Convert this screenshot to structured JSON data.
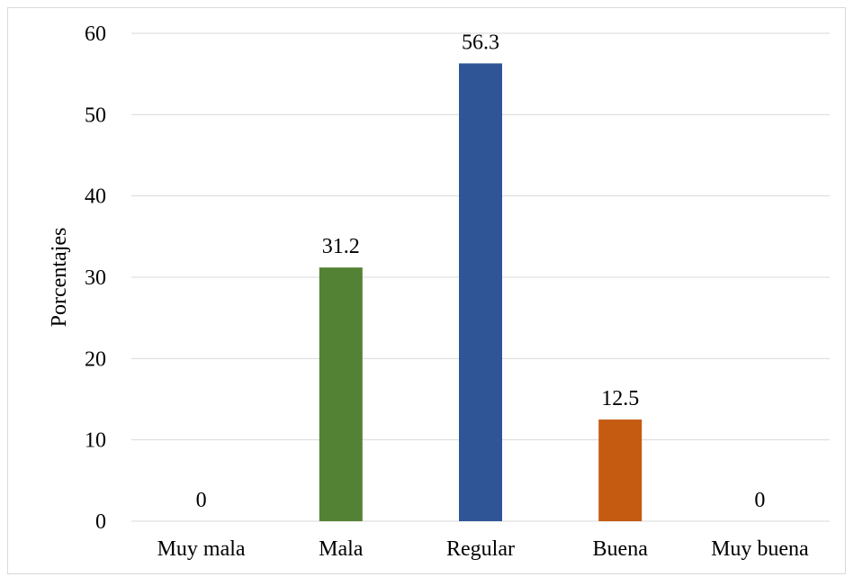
{
  "chart_data": {
    "type": "bar",
    "title": "",
    "xlabel": "",
    "ylabel": "Porcentajes",
    "categories": [
      "Muy mala",
      "Mala",
      "Regular",
      "Buena",
      "Muy buena"
    ],
    "values": [
      0,
      31.2,
      56.3,
      12.5,
      0
    ],
    "value_labels": [
      "0",
      "31.2",
      "56.3",
      "12.5",
      "0"
    ],
    "bar_colors": [
      "#4472c4",
      "#548235",
      "#2f5597",
      "#c55a11",
      "#4472c4"
    ],
    "ylim": [
      0,
      60
    ],
    "yticks": [
      0,
      10,
      20,
      30,
      40,
      50,
      60
    ],
    "ytick_labels": [
      "0",
      "10",
      "20",
      "30",
      "40",
      "50",
      "60"
    ],
    "grid": true,
    "legend": "none"
  }
}
